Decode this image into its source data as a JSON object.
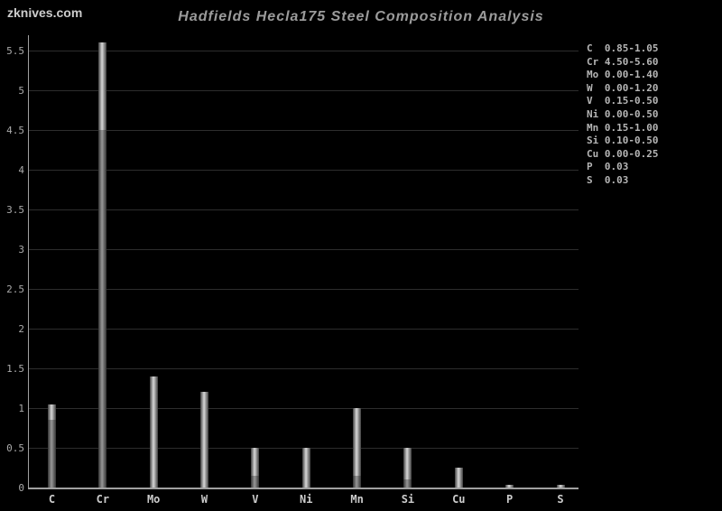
{
  "watermark": "zknives.com",
  "title": "Hadfields Hecla175 Steel Composition Analysis",
  "colors": {
    "background": "#000000",
    "title_text": "#9b9b9b",
    "watermark_text": "#cdcdcd",
    "axis_line": "#a0a0a0",
    "gridline": "#2d2d2d",
    "tick_label": "#aaaaaa",
    "x_label": "#cccccc",
    "legend_text": "#b5b5b5",
    "bar_range_center": "#d8d8d8",
    "bar_base_center": "#989898",
    "bar_edge": "#3f3f3f",
    "bar_edge_dim": "#333333"
  },
  "chart_data": {
    "type": "bar",
    "title": "Hadfields Hecla175 Steel Composition Analysis",
    "xlabel": "",
    "ylabel": "",
    "categories": [
      "C",
      "Cr",
      "Mo",
      "W",
      "V",
      "Ni",
      "Mn",
      "Si",
      "Cu",
      "P",
      "S"
    ],
    "series": [
      {
        "name": "range_min",
        "values": [
          0.85,
          4.5,
          0.0,
          0.0,
          0.15,
          0.0,
          0.15,
          0.1,
          0.0,
          0.03,
          0.03
        ]
      },
      {
        "name": "range_max",
        "values": [
          1.05,
          5.6,
          1.4,
          1.2,
          0.5,
          0.5,
          1.0,
          0.5,
          0.25,
          0.03,
          0.03
        ]
      }
    ],
    "bar_style": "min-max range bars; 0-to-min segment drawn dimmer, min-to-max segment brighter",
    "ylim": [
      0,
      5.75
    ],
    "yticks": [
      0,
      0.5,
      1,
      1.5,
      2,
      2.5,
      3,
      3.5,
      4,
      4.5,
      5,
      5.5
    ],
    "ytick_labels": [
      "0",
      "0.5",
      "1",
      "1.5",
      "2",
      "2.5",
      "3",
      "3.5",
      "4",
      "4.5",
      "5",
      "5.5"
    ],
    "grid": true,
    "legend_position": "right",
    "legend": [
      {
        "element": "C",
        "range": "0.85-1.05"
      },
      {
        "element": "Cr",
        "range": "4.50-5.60"
      },
      {
        "element": "Mo",
        "range": "0.00-1.40"
      },
      {
        "element": "W",
        "range": "0.00-1.20"
      },
      {
        "element": "V",
        "range": "0.15-0.50"
      },
      {
        "element": "Ni",
        "range": "0.00-0.50"
      },
      {
        "element": "Mn",
        "range": "0.15-1.00"
      },
      {
        "element": "Si",
        "range": "0.10-0.50"
      },
      {
        "element": "Cu",
        "range": "0.00-0.25"
      },
      {
        "element": "P",
        "range": "0.03"
      },
      {
        "element": "S",
        "range": "0.03"
      }
    ]
  }
}
